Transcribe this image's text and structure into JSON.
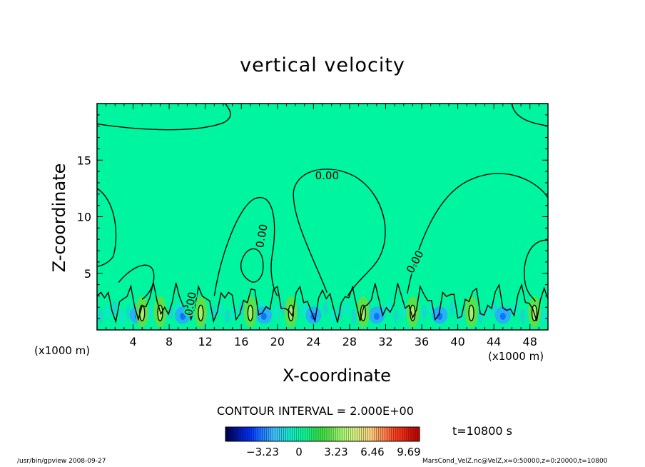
{
  "chart_data": {
    "type": "heatmap",
    "title": "vertical velocity",
    "xlabel": "X-coordinate",
    "ylabel": "Z-coordinate",
    "x_unit_label": "(x1000 m)",
    "xlim": [
      0,
      50
    ],
    "ylim": [
      0,
      20
    ],
    "x_ticks": [
      4,
      8,
      12,
      16,
      20,
      24,
      28,
      32,
      36,
      40,
      44,
      48
    ],
    "y_ticks": [
      5,
      10,
      15
    ],
    "contour_interval_text": "CONTOUR INTERVAL = 2.000E+00",
    "contour_labels": [
      "0.00",
      "0.00",
      "0.00",
      "0.00"
    ],
    "colorbar": {
      "ticks": [
        -3.23,
        0,
        3.23,
        6.46,
        9.69
      ],
      "tick_labels": [
        "−3.23",
        "0",
        "3.23",
        "6.46",
        "9.69"
      ],
      "colormap": "rainbow",
      "colors": [
        "#00004c",
        "#0030ff",
        "#40c0ff",
        "#00ffb0",
        "#40e040",
        "#c0ff80",
        "#ffd080",
        "#ff4020",
        "#c00000"
      ]
    },
    "background_color": "#00f5a0",
    "time_label": "t=10800 s",
    "positive_updraft_x": [
      5,
      7,
      11.5,
      17,
      21.5,
      29.5,
      35,
      41.5,
      48.5
    ],
    "negative_downdraft_x": [
      4.5,
      9.5,
      18.5,
      24,
      31,
      38,
      45
    ]
  },
  "footer": {
    "left": "/usr/bin/gpview   2008-09-27",
    "right": "MarsCond_VelZ.nc@VelZ,x=0:50000,z=0:20000,t=10800"
  }
}
